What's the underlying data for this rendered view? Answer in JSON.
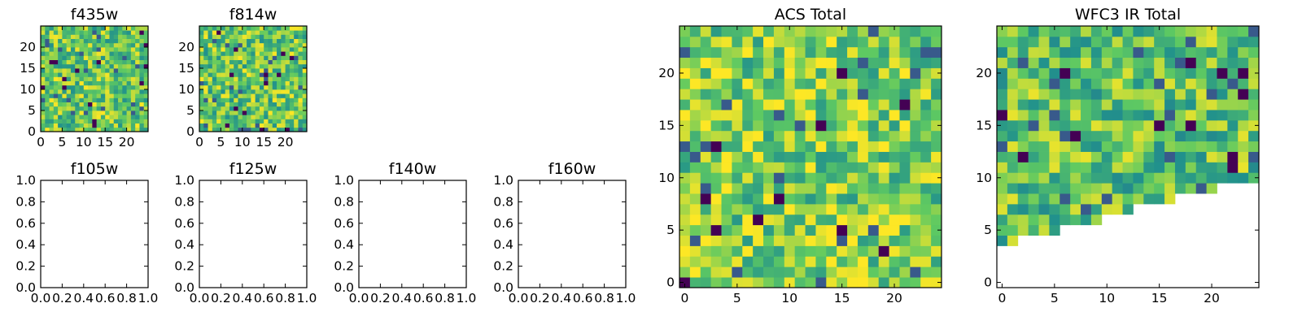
{
  "chart_data": [
    {
      "id": "f435w",
      "type": "heatmap",
      "title": "f435w",
      "xticks": [
        "0",
        "5",
        "10",
        "15",
        "20"
      ],
      "yticks": [
        "0",
        "5",
        "10",
        "15",
        "20"
      ],
      "xlim": [
        0,
        25
      ],
      "ylim": [
        0,
        25
      ],
      "colormap": "viridis"
    },
    {
      "id": "f814w",
      "type": "heatmap",
      "title": "f814w",
      "xticks": [
        "0",
        "5",
        "10",
        "15",
        "20"
      ],
      "yticks": [
        "0",
        "5",
        "10",
        "15",
        "20"
      ],
      "xlim": [
        0,
        25
      ],
      "ylim": [
        0,
        25
      ],
      "colormap": "viridis"
    },
    {
      "id": "f105w",
      "type": "empty",
      "title": "f105w",
      "xticks": [
        "0.0",
        "0.2",
        "0.4",
        "0.6",
        "0.8",
        "1.0"
      ],
      "yticks": [
        "0.0",
        "0.2",
        "0.4",
        "0.6",
        "0.8",
        "1.0"
      ],
      "xlim": [
        0,
        1
      ],
      "ylim": [
        0,
        1
      ]
    },
    {
      "id": "f125w",
      "type": "empty",
      "title": "f125w",
      "xticks": [
        "0.0",
        "0.2",
        "0.4",
        "0.6",
        "0.8",
        "1.0"
      ],
      "yticks": [
        "0.0",
        "0.2",
        "0.4",
        "0.6",
        "0.8",
        "1.0"
      ],
      "xlim": [
        0,
        1
      ],
      "ylim": [
        0,
        1
      ]
    },
    {
      "id": "f140w",
      "type": "empty",
      "title": "f140w",
      "xticks": [
        "0.0",
        "0.2",
        "0.4",
        "0.6",
        "0.8",
        "1.0"
      ],
      "yticks": [
        "0.0",
        "0.2",
        "0.4",
        "0.6",
        "0.8",
        "1.0"
      ],
      "xlim": [
        0,
        1
      ],
      "ylim": [
        0,
        1
      ]
    },
    {
      "id": "f160w",
      "type": "empty",
      "title": "f160w",
      "xticks": [
        "0.0",
        "0.2",
        "0.4",
        "0.6",
        "0.8",
        "1.0"
      ],
      "yticks": [
        "0.0",
        "0.2",
        "0.4",
        "0.6",
        "0.8",
        "1.0"
      ],
      "xlim": [
        0,
        1
      ],
      "ylim": [
        0,
        1
      ]
    },
    {
      "id": "acs",
      "type": "heatmap",
      "title": "ACS Total",
      "xticks": [
        "0",
        "5",
        "10",
        "15",
        "20"
      ],
      "yticks": [
        "0",
        "5",
        "10",
        "15",
        "20"
      ],
      "xlim": [
        -0.5,
        24.5
      ],
      "ylim": [
        -0.5,
        24.5
      ],
      "colormap": "viridis"
    },
    {
      "id": "wfc3",
      "type": "heatmap",
      "title": "WFC3 IR Total",
      "xticks": [
        "0",
        "5",
        "10",
        "15",
        "20"
      ],
      "yticks": [
        "0",
        "5",
        "10",
        "15",
        "20"
      ],
      "xlim": [
        -0.5,
        24.5
      ],
      "ylim": [
        -0.5,
        24.5
      ],
      "colormap": "viridis",
      "masked_region": "lower-right triangle"
    }
  ],
  "colormap_stops": [
    "#440154",
    "#3b528b",
    "#21918c",
    "#5ec962",
    "#fde725"
  ]
}
